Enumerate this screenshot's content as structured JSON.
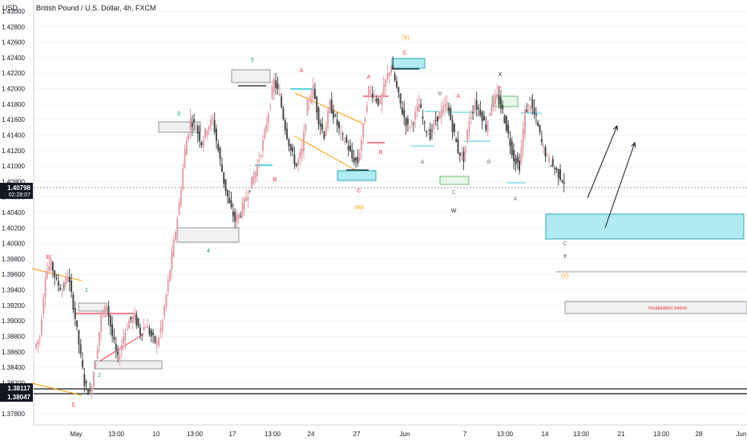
{
  "chart_data": {
    "type": "candlestick",
    "title": "British Pound / U.S. Dollar, 4h, FXCM",
    "currency": "USD",
    "last_price": "1.40798",
    "countdown": "02:28:07",
    "level_labels": [
      "1.38117",
      "1.38047"
    ],
    "y_ticks": [
      "1.43000",
      "1.42800",
      "1.42600",
      "1.42400",
      "1.42200",
      "1.42000",
      "1.41800",
      "1.41600",
      "1.41400",
      "1.41200",
      "1.41000",
      "1.40800",
      "1.40600",
      "1.40400",
      "1.40200",
      "1.40000",
      "1.39800",
      "1.39600",
      "1.39400",
      "1.39200",
      "1.39000",
      "1.38800",
      "1.38600",
      "1.38400",
      "1.38200",
      "1.38000",
      "1.37800"
    ],
    "y_tick_values": [
      1.43,
      1.428,
      1.426,
      1.424,
      1.422,
      1.42,
      1.418,
      1.416,
      1.414,
      1.412,
      1.41,
      1.408,
      1.406,
      1.404,
      1.402,
      1.4,
      1.398,
      1.396,
      1.394,
      1.392,
      1.39,
      1.388,
      1.386,
      1.384,
      1.382,
      1.38,
      1.378
    ],
    "x_ticks": [
      "May",
      "13:00",
      "10",
      "13:00",
      "17",
      "13:00",
      "24",
      "27",
      "Jun",
      "7",
      "13:00",
      "14",
      "13:00",
      "21",
      "13:00",
      "28",
      "Jun"
    ],
    "ylim": [
      1.3768,
      1.431
    ],
    "price_path": [
      1.3865,
      1.388,
      1.396,
      1.3975,
      1.395,
      1.394,
      1.396,
      1.392,
      1.387,
      1.382,
      1.3805,
      1.385,
      1.3905,
      1.392,
      1.388,
      1.385,
      1.388,
      1.39,
      1.3905,
      1.3885,
      1.3895,
      1.388,
      1.387,
      1.39,
      1.395,
      1.4,
      1.405,
      1.412,
      1.416,
      1.415,
      1.413,
      1.415,
      1.416,
      1.412,
      1.408,
      1.405,
      1.403,
      1.404,
      1.406,
      1.408,
      1.41,
      1.413,
      1.417,
      1.421,
      1.419,
      1.415,
      1.412,
      1.41,
      1.412,
      1.418,
      1.42,
      1.416,
      1.414,
      1.418,
      1.416,
      1.414,
      1.413,
      1.411,
      1.4105,
      1.415,
      1.42,
      1.419,
      1.418,
      1.421,
      1.423,
      1.42,
      1.417,
      1.415,
      1.416,
      1.418,
      1.415,
      1.414,
      1.416,
      1.417,
      1.418,
      1.415,
      1.412,
      1.411,
      1.416,
      1.418,
      1.417,
      1.415,
      1.418,
      1.419,
      1.417,
      1.414,
      1.411,
      1.41,
      1.417,
      1.418,
      1.416,
      1.413,
      1.411,
      1.41,
      1.409,
      1.408
    ],
    "wave_labels": [
      {
        "text": "B",
        "color": "#f23645"
      },
      {
        "text": "1",
        "color": "#089981"
      },
      {
        "text": "2",
        "color": "#089981"
      },
      {
        "text": "C",
        "color": "#f23645"
      },
      {
        "text": "3",
        "color": "#089981"
      },
      {
        "text": "4",
        "color": "#089981"
      },
      {
        "text": "5",
        "color": "#089981"
      },
      {
        "text": "A",
        "color": "#f23645"
      },
      {
        "text": "B",
        "color": "#f23645"
      },
      {
        "text": "A",
        "color": "#f23645"
      },
      {
        "text": "B",
        "color": "#f23645"
      },
      {
        "text": "C",
        "color": "#f23645"
      },
      {
        "text": "(W)",
        "color": "#ff9800"
      },
      {
        "text": "(X)",
        "color": "#ff9800"
      },
      {
        "text": "C",
        "color": "#f23645"
      },
      {
        "text": "A",
        "color": "#787b86"
      },
      {
        "text": "B",
        "color": "#787b86"
      },
      {
        "text": "A",
        "color": "#f23645"
      },
      {
        "text": "C",
        "color": "#787b86"
      },
      {
        "text": "W",
        "color": "#131722"
      },
      {
        "text": "X",
        "color": "#131722"
      },
      {
        "text": "C",
        "color": "#f23645"
      },
      {
        "text": "B",
        "color": "#787b86"
      },
      {
        "text": "B",
        "color": "#787b86"
      },
      {
        "text": "A",
        "color": "#787b86"
      },
      {
        "text": "C",
        "color": "#787b86"
      },
      {
        "text": "Y",
        "color": "#131722"
      },
      {
        "text": "(Y)",
        "color": "#ff9800"
      }
    ],
    "invalidation_text": "Invalidation below",
    "colors": {
      "up": "#e0a0a8",
      "down": "#4a4a4a",
      "cyan": "#b2ebf2",
      "accent": "#f23645",
      "orange": "#ff9800"
    }
  }
}
